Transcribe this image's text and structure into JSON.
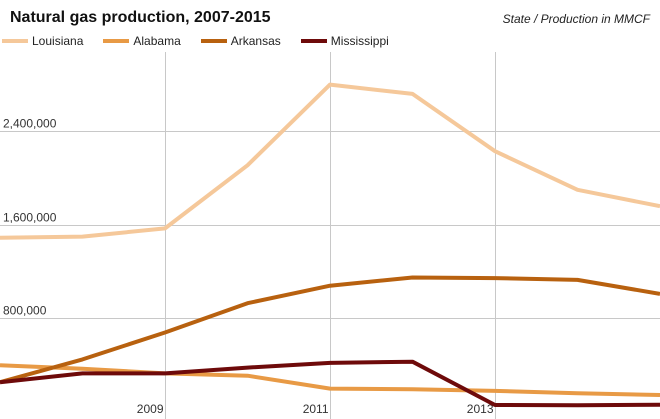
{
  "chart_data": {
    "type": "line",
    "title": "Natural gas production, 2007-2015",
    "subtitle": "State / Production in MMCF",
    "x": [
      2007,
      2008,
      2009,
      2010,
      2011,
      2012,
      2013,
      2014,
      2015
    ],
    "series": [
      {
        "name": "Louisiana",
        "color": "#f5c89a",
        "values": [
          1490000,
          1500000,
          1570000,
          2110000,
          2800000,
          2720000,
          2230000,
          1900000,
          1760000
        ]
      },
      {
        "name": "Alabama",
        "color": "#e89a45",
        "values": [
          400000,
          370000,
          330000,
          310000,
          200000,
          195000,
          180000,
          160000,
          145000
        ]
      },
      {
        "name": "Arkansas",
        "color": "#b8610f",
        "values": [
          255000,
          450000,
          680000,
          930000,
          1080000,
          1150000,
          1145000,
          1130000,
          1010000
        ]
      },
      {
        "name": "Mississippi",
        "color": "#6e0a0a",
        "values": [
          255000,
          330000,
          330000,
          380000,
          420000,
          430000,
          60000,
          58000,
          62000
        ]
      }
    ],
    "yticks": [
      800000,
      1600000,
      2400000
    ],
    "ytick_labels": [
      "800,000",
      "1,600,000",
      "2,400,000"
    ],
    "xticks": [
      2009,
      2011,
      2013
    ],
    "xtick_labels": [
      "2009",
      "2011",
      "2013"
    ],
    "ylim": [
      -60000,
      3130000
    ],
    "xlim": [
      2007,
      2015
    ],
    "grid": true,
    "legend_position": "top-left"
  }
}
